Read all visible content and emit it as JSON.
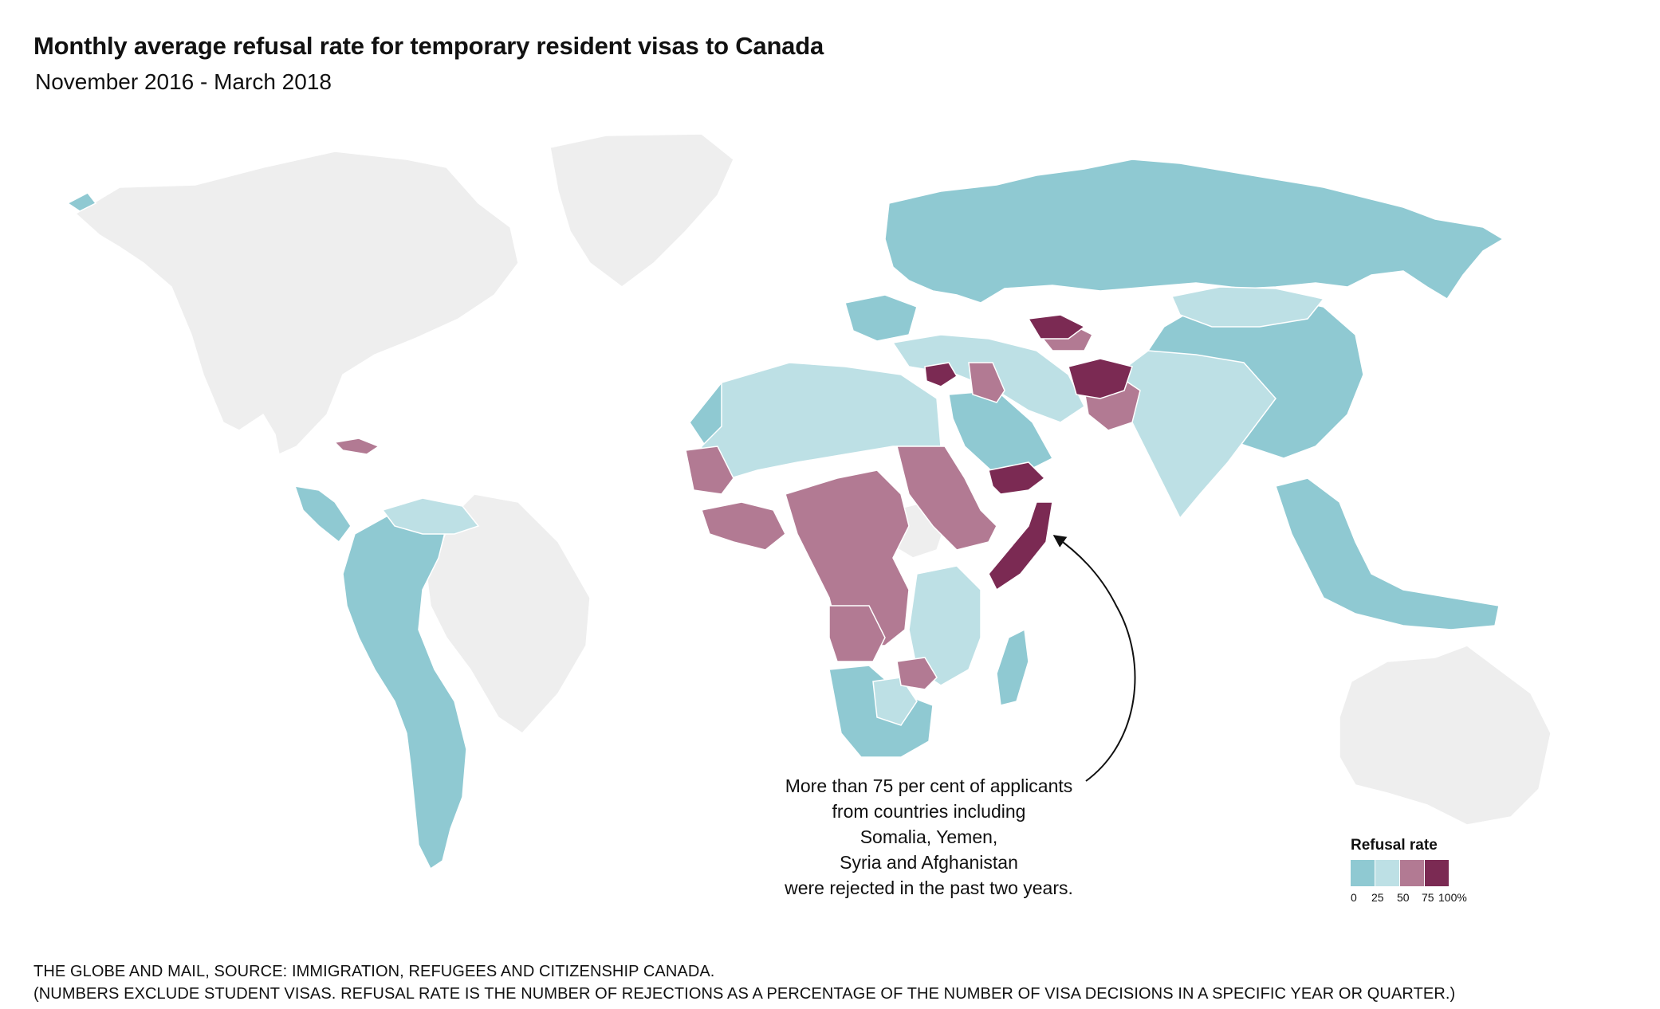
{
  "title": "Monthly average refusal rate for temporary resident visas to Canada",
  "subtitle": "November 2016 - March 2018",
  "colors": {
    "background": "#ffffff",
    "no_data": "#eeeeee",
    "border": "#d8d8d8",
    "bin_0_25": "#8fc9d2",
    "bin_25_50": "#bde0e5",
    "bin_50_75": "#b27a93",
    "bin_75_100": "#7b2a53"
  },
  "annotation": {
    "lines": [
      "More than 75 per cent of applicants",
      "from countries including",
      "Somalia, Yemen,",
      "Syria and Afghanistan",
      "were rejected in the past two years."
    ]
  },
  "legend": {
    "title": "Refusal rate",
    "bins": [
      {
        "range": "0-25",
        "color": "#8fc9d2"
      },
      {
        "range": "25-50",
        "color": "#bde0e5"
      },
      {
        "range": "50-75",
        "color": "#b27a93"
      },
      {
        "range": "75-100",
        "color": "#7b2a53"
      }
    ],
    "ticks": [
      "0",
      "25",
      "50",
      "75",
      "100%"
    ]
  },
  "footer": {
    "line1": "THE GLOBE AND MAIL, SOURCE: IMMIGRATION, REFUGEES AND CITIZENSHIP CANADA.",
    "line2": "(NUMBERS EXCLUDE STUDENT VISAS. REFUSAL RATE IS THE NUMBER OF REJECTIONS AS A PERCENTAGE OF THE NUMBER OF VISA DECISIONS IN A SPECIFIC YEAR OR QUARTER.)"
  }
}
